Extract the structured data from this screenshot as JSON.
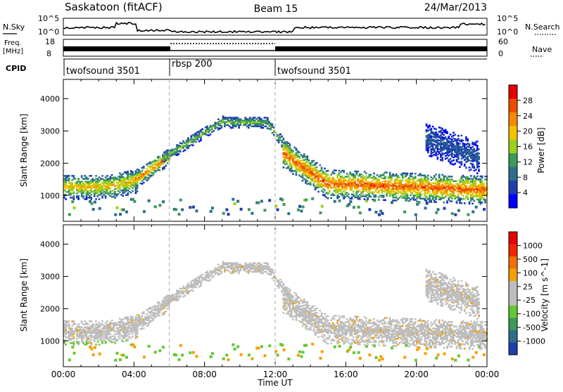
{
  "header": {
    "station": "Saskatoon (fitACF)",
    "beam": "Beam 15",
    "date": "24/Mar/2013"
  },
  "noise_panel": {
    "left_label": "N.Sky",
    "right_label": "N.Search",
    "ticks": [
      "10^5",
      "10^0"
    ]
  },
  "freq_panel": {
    "left_label_line1": "Freq.",
    "left_label_line2": "[MHz]",
    "left_ticks": [
      "18",
      "8"
    ],
    "right_ticks": [
      "60",
      "0"
    ],
    "right_label": "Nave"
  },
  "cpid": {
    "label": "CPID",
    "segments": [
      {
        "name": "twofsound 3501",
        "start": 0,
        "end": 6
      },
      {
        "name": "rbsp 200",
        "start": 6,
        "end": 12
      },
      {
        "name": "twofsound 3501",
        "start": 12,
        "end": 24
      }
    ]
  },
  "colors": {
    "power": [
      "#0000ff",
      "#1f3fb0",
      "#2e6e8a",
      "#3c9a5a",
      "#9bd11e",
      "#f2c200",
      "#f58a00",
      "#f04a00",
      "#e60000"
    ],
    "velocity": [
      "#1f3fb0",
      "#2e6e8a",
      "#3c9a5a",
      "#64c832",
      "#bebebe",
      "#bebebe",
      "#f5a000",
      "#f56e00",
      "#f02800",
      "#e60000"
    ],
    "grey": "#bebebe"
  },
  "chart_data": [
    {
      "type": "heatmap",
      "name": "power-panel",
      "ylabel": "Slant Range [km]",
      "xlabel": "Time UT",
      "x_ticks": [
        "00:00",
        "04:00",
        "08:00",
        "12:00",
        "16:00",
        "20:00",
        "00:00"
      ],
      "y_ticks": [
        "1000",
        "2000",
        "3000",
        "4000"
      ],
      "xlim": [
        0,
        24
      ],
      "ylim": [
        200,
        4600
      ],
      "colorbar_label": "Power [dB]",
      "colorbar_ticks": [
        "28",
        "24",
        "20",
        "16",
        "12",
        "8",
        "4"
      ],
      "colorbar_range": [
        0,
        30
      ],
      "vertical_markers": [
        6,
        12
      ]
    },
    {
      "type": "heatmap",
      "name": "velocity-panel",
      "ylabel": "Slant Range [km]",
      "xlabel": "Time UT",
      "x_ticks": [
        "00:00",
        "04:00",
        "08:00",
        "12:00",
        "16:00",
        "20:00",
        "00:00"
      ],
      "y_ticks": [
        "1000",
        "2000",
        "3000",
        "4000"
      ],
      "xlim": [
        0,
        24
      ],
      "ylim": [
        200,
        4600
      ],
      "colorbar_label": "Velocity [m s^-1]",
      "colorbar_ticks": [
        "1000",
        "500",
        "100",
        "25",
        "-25",
        "-100",
        "-500",
        "-1000"
      ],
      "vertical_markers": [
        6,
        12
      ]
    }
  ]
}
